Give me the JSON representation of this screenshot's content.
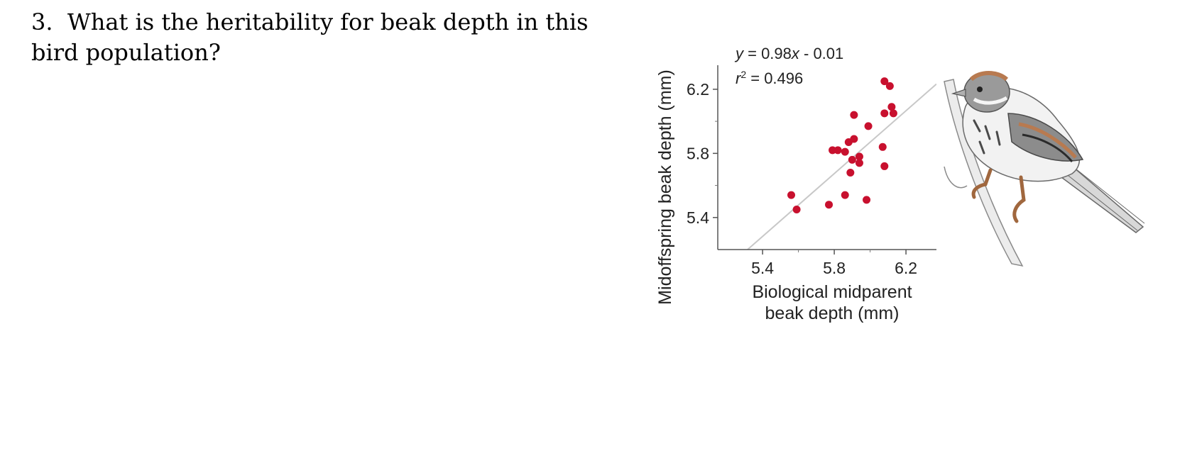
{
  "question": {
    "number": "3.",
    "text": "What is the heritability for beak depth in this bird population?"
  },
  "bird_icon": "sparrow-illustration",
  "chart_data": {
    "type": "scatter",
    "xlabel_lines": [
      "Biological midparent",
      "beak depth (mm)"
    ],
    "ylabel": "Midoffspring beak depth (mm)",
    "xlim": [
      5.15,
      6.37
    ],
    "ylim": [
      5.2,
      6.35
    ],
    "xticks": [
      5.4,
      5.8,
      6.2
    ],
    "yticks": [
      5.4,
      5.8,
      6.2
    ],
    "xtick_labels": [
      "5.4",
      "5.8",
      "6.2"
    ],
    "ytick_labels": [
      "5.4",
      "5.8",
      "6.2"
    ],
    "annotations": {
      "equation": "y = 0.98x - 0.01",
      "r_squared": "r2 = 0.496"
    },
    "regression": {
      "slope": 0.98,
      "intercept": -0.01
    },
    "point_color": "#c8102e",
    "line_color": "#c8c8c8",
    "points": [
      {
        "x": 5.56,
        "y": 5.54
      },
      {
        "x": 5.59,
        "y": 5.45
      },
      {
        "x": 5.77,
        "y": 5.48
      },
      {
        "x": 5.86,
        "y": 5.54
      },
      {
        "x": 5.98,
        "y": 5.51
      },
      {
        "x": 5.79,
        "y": 5.82
      },
      {
        "x": 5.82,
        "y": 5.82
      },
      {
        "x": 5.86,
        "y": 5.81
      },
      {
        "x": 5.88,
        "y": 5.87
      },
      {
        "x": 5.91,
        "y": 5.89
      },
      {
        "x": 5.9,
        "y": 5.76
      },
      {
        "x": 5.89,
        "y": 5.68
      },
      {
        "x": 5.94,
        "y": 5.74
      },
      {
        "x": 5.94,
        "y": 5.78
      },
      {
        "x": 5.91,
        "y": 6.04
      },
      {
        "x": 5.99,
        "y": 5.97
      },
      {
        "x": 6.07,
        "y": 5.84
      },
      {
        "x": 6.08,
        "y": 5.72
      },
      {
        "x": 6.08,
        "y": 6.05
      },
      {
        "x": 6.08,
        "y": 6.25
      },
      {
        "x": 6.11,
        "y": 6.22
      },
      {
        "x": 6.12,
        "y": 6.09
      },
      {
        "x": 6.13,
        "y": 6.05
      }
    ]
  }
}
